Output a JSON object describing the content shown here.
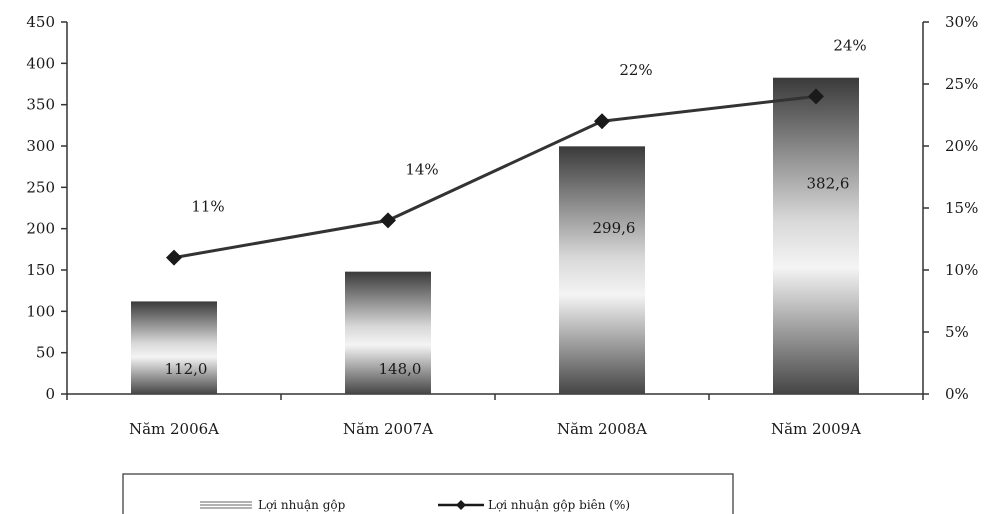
{
  "chart_data": {
    "type": "bar",
    "categories": [
      "Năm 2006A",
      "Năm 2007A",
      "Năm 2008A",
      "Năm 2009A"
    ],
    "series": [
      {
        "name": "Lợi nhuận gộp",
        "type": "bar",
        "axis": "left",
        "values": [
          112.0,
          148.0,
          299.6,
          382.6
        ],
        "labels": [
          "112,0",
          "148,0",
          "299,6",
          "382,6"
        ]
      },
      {
        "name": "Lợi nhuận gộp biên (%)",
        "type": "line",
        "axis": "right",
        "values": [
          11,
          14,
          22,
          24
        ],
        "labels": [
          "11%",
          "14%",
          "22%",
          "24%"
        ]
      }
    ],
    "left_axis": {
      "min": 0,
      "max": 450,
      "step": 50,
      "ticks": [
        "0",
        "50",
        "100",
        "150",
        "200",
        "250",
        "300",
        "350",
        "400",
        "450"
      ]
    },
    "right_axis": {
      "min": 0,
      "max": 30,
      "step": 5,
      "ticks": [
        "0%",
        "5%",
        "10%",
        "15%",
        "20%",
        "25%",
        "30%"
      ]
    },
    "legend_position": "bottom",
    "grid": false,
    "colors": {
      "bar_dark": "#3a3a3a",
      "bar_light": "#f2f2f2",
      "line": "#333333",
      "axis": "#333333"
    }
  }
}
